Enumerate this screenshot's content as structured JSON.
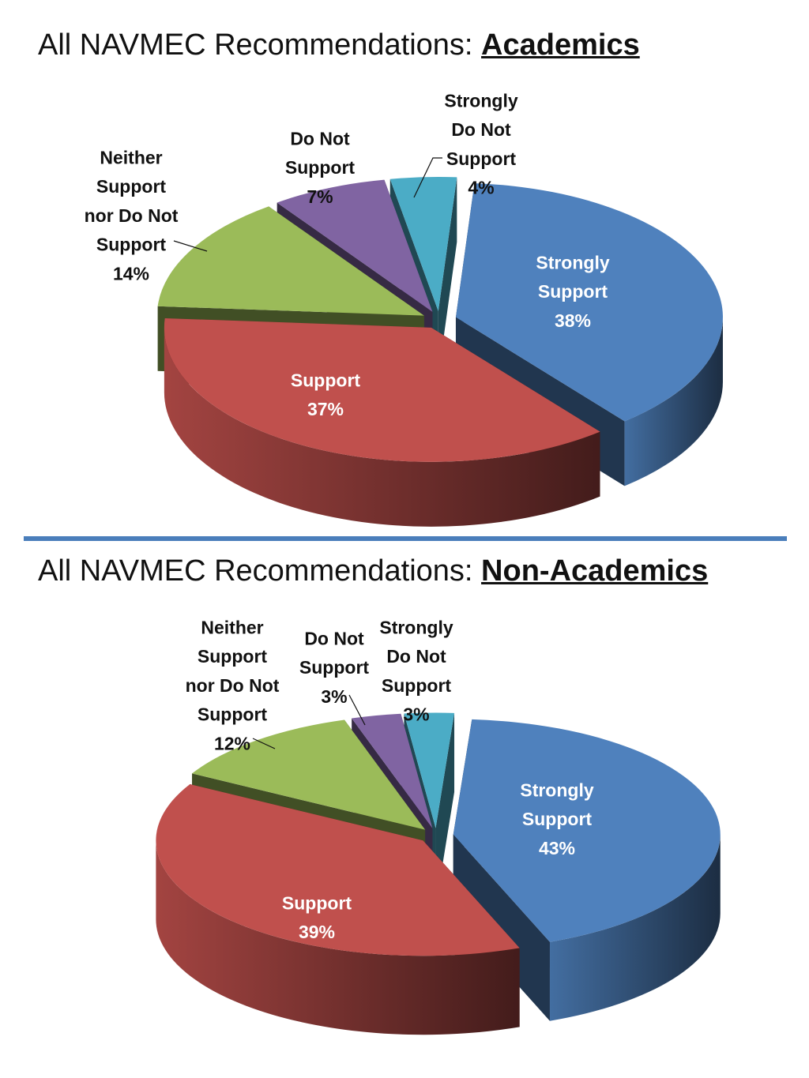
{
  "titles": [
    {
      "prefix": "All NAVMEC Recommendations: ",
      "emphasis": "Academics"
    },
    {
      "prefix": "All NAVMEC Recommendations: ",
      "emphasis": "Non-Academics"
    }
  ],
  "colors": {
    "divider": "#4a7ebb",
    "strongly_support": "#4f81bd",
    "support": "#c0504d",
    "neither": "#9bbb59",
    "do_not_support": "#8064a2",
    "strongly_do_not_support": "#4bacc6"
  },
  "chart_data": [
    {
      "type": "pie",
      "style": "3d-exploded",
      "slices": [
        {
          "key": "strongly_support",
          "label": [
            "Strongly",
            "Support"
          ],
          "value": 38,
          "value_label": "38%"
        },
        {
          "key": "support",
          "label": [
            "Support"
          ],
          "value": 37,
          "value_label": "37%"
        },
        {
          "key": "neither",
          "label": [
            "Neither",
            "Support",
            "nor Do Not",
            "Support"
          ],
          "value": 14,
          "value_label": "14%"
        },
        {
          "key": "do_not_support",
          "label": [
            "Do Not",
            "Support"
          ],
          "value": 7,
          "value_label": "7%"
        },
        {
          "key": "strongly_do_not_support",
          "label": [
            "Strongly",
            "Do Not",
            "Support"
          ],
          "value": 4,
          "value_label": "4%"
        }
      ]
    },
    {
      "type": "pie",
      "style": "3d-exploded",
      "slices": [
        {
          "key": "strongly_support",
          "label": [
            "Strongly",
            "Support"
          ],
          "value": 43,
          "value_label": "43%"
        },
        {
          "key": "support",
          "label": [
            "Support"
          ],
          "value": 39,
          "value_label": "39%"
        },
        {
          "key": "neither",
          "label": [
            "Neither",
            "Support",
            "nor Do Not",
            "Support"
          ],
          "value": 12,
          "value_label": "12%"
        },
        {
          "key": "do_not_support",
          "label": [
            "Do Not",
            "Support"
          ],
          "value": 3,
          "value_label": "3%"
        },
        {
          "key": "strongly_do_not_support",
          "label": [
            "Strongly",
            "Do Not",
            "Support"
          ],
          "value": 3,
          "value_label": "3%"
        }
      ]
    }
  ]
}
